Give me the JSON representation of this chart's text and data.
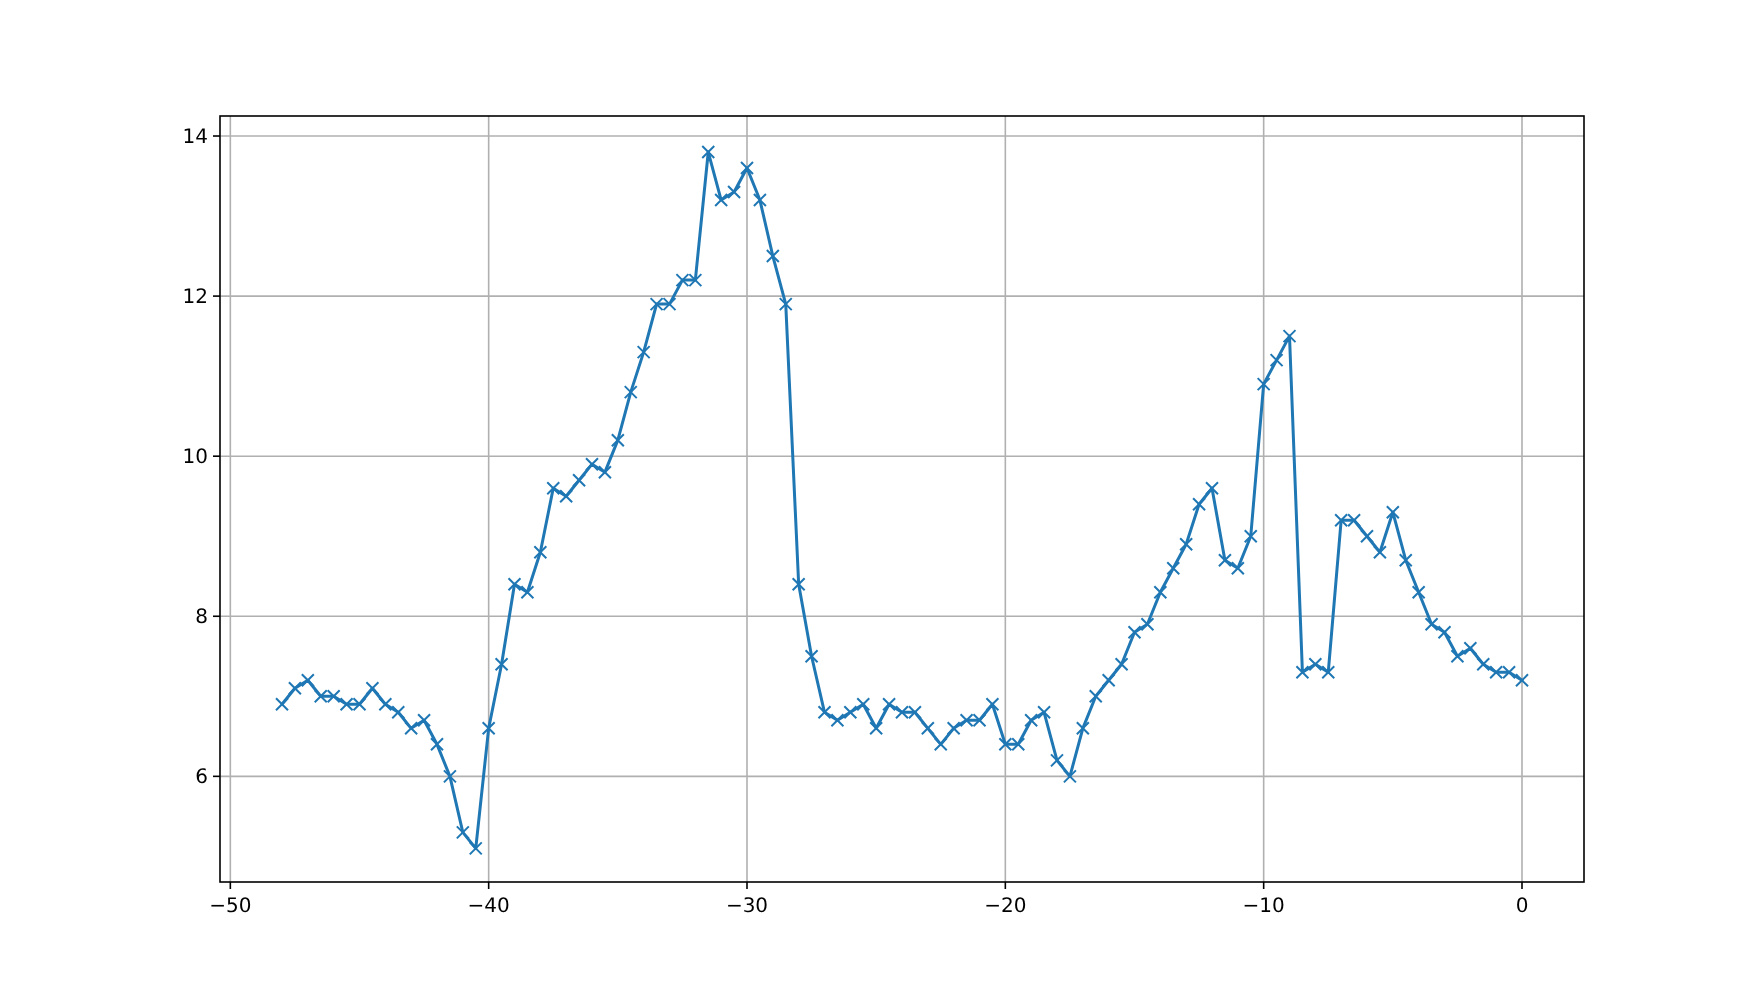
{
  "chart_data": {
    "type": "line",
    "x": [
      -48,
      -47.5,
      -47,
      -46.5,
      -46,
      -45.5,
      -45,
      -44.5,
      -44,
      -43.5,
      -43,
      -42.5,
      -42,
      -41.5,
      -41,
      -40.5,
      -40,
      -39.5,
      -39,
      -38.5,
      -38,
      -37.5,
      -37,
      -36.5,
      -36,
      -35.5,
      -35,
      -34.5,
      -34,
      -33.5,
      -33,
      -32.5,
      -32,
      -31.5,
      -31,
      -30.5,
      -30,
      -29.5,
      -29,
      -28.5,
      -28,
      -27.5,
      -27,
      -26.5,
      -26,
      -25.5,
      -25,
      -24.5,
      -24,
      -23.5,
      -23,
      -22.5,
      -22,
      -21.5,
      -21,
      -20.5,
      -20,
      -19.5,
      -19,
      -18.5,
      -18,
      -17.5,
      -17,
      -16.5,
      -16,
      -15.5,
      -15,
      -14.5,
      -14,
      -13.5,
      -13,
      -12.5,
      -12,
      -11.5,
      -11,
      -10.5,
      -10,
      -9.5,
      -9,
      -8.5,
      -8,
      -7.5,
      -7,
      -6.5,
      -6,
      -5.5,
      -5,
      -4.5,
      -4,
      -3.5,
      -3,
      -2.5,
      -2,
      -1.5,
      -1,
      -0.5,
      0
    ],
    "series": [
      {
        "color": "#1f77b4",
        "values": [
          6.9,
          7.1,
          7.2,
          7.0,
          7.0,
          6.9,
          6.9,
          7.1,
          6.9,
          6.8,
          6.6,
          6.7,
          6.4,
          6.0,
          5.3,
          5.1,
          6.6,
          7.4,
          8.4,
          8.3,
          8.8,
          9.6,
          9.5,
          9.7,
          9.9,
          9.8,
          10.2,
          10.8,
          11.3,
          11.9,
          11.9,
          12.2,
          12.2,
          13.8,
          13.2,
          13.3,
          13.6,
          13.2,
          12.5,
          11.9,
          8.4,
          7.5,
          6.8,
          6.7,
          6.8,
          6.9,
          6.6,
          6.9,
          6.8,
          6.8,
          6.6,
          6.4,
          6.6,
          6.7,
          6.7,
          6.9,
          6.4,
          6.4,
          6.7,
          6.8,
          6.2,
          6.0,
          6.6,
          7.0,
          7.2,
          7.4,
          7.8,
          7.9,
          8.3,
          8.6,
          8.9,
          9.4,
          9.6,
          8.7,
          8.6,
          9.0,
          10.9,
          11.2,
          11.5,
          7.3,
          7.4,
          7.3,
          9.2,
          9.2,
          9.0,
          8.8,
          9.3,
          8.7,
          8.3,
          7.9,
          7.8,
          7.5,
          7.6,
          7.4,
          7.3,
          7.3,
          7.2
        ]
      }
    ],
    "xlim": [
      -50.4,
      2.4
    ],
    "ylim": [
      4.68,
      14.25
    ],
    "xticks": [
      {
        "value": -50,
        "label": "−50"
      },
      {
        "value": -40,
        "label": "−40"
      },
      {
        "value": -30,
        "label": "−30"
      },
      {
        "value": -20,
        "label": "−20"
      },
      {
        "value": -10,
        "label": "−10"
      },
      0
    ],
    "yticks": [
      6,
      8,
      10,
      12,
      14
    ],
    "grid": true,
    "marker": "cross",
    "line_style": "solid"
  }
}
